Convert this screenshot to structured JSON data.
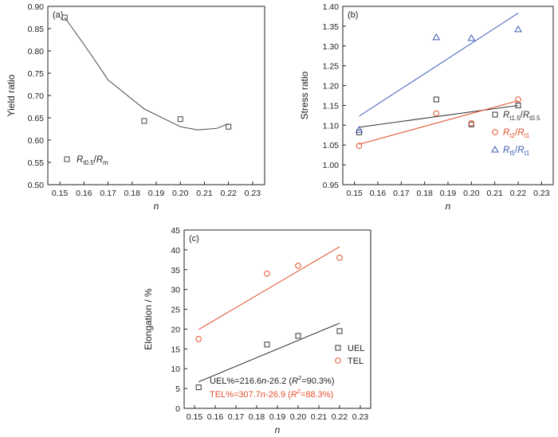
{
  "chart_data": [
    {
      "panel": "(a)",
      "type": "scatter",
      "xlabel": "n",
      "ylabel": "Yield ratio",
      "xlim": [
        0.145,
        0.235
      ],
      "ylim": [
        0.5,
        0.9
      ],
      "xticks": [
        "0.15",
        "0.16",
        "0.17",
        "0.18",
        "0.19",
        "0.20",
        "0.21",
        "0.22",
        "0.23"
      ],
      "yticks": [
        "0.50",
        "0.55",
        "0.60",
        "0.65",
        "0.70",
        "0.75",
        "0.80",
        "0.85",
        "0.90"
      ],
      "series": [
        {
          "name": "Rt0.5/Rm",
          "marker": "square",
          "color": "#444444",
          "x": [
            0.152,
            0.185,
            0.2,
            0.22
          ],
          "y": [
            0.875,
            0.643,
            0.647,
            0.63
          ]
        }
      ],
      "fit_curve": {
        "type": "quadratic",
        "color": "#444444",
        "x": [
          0.152,
          0.17,
          0.185,
          0.2,
          0.207,
          0.215,
          0.22
        ],
        "y": [
          0.875,
          0.735,
          0.67,
          0.63,
          0.623,
          0.626,
          0.637
        ]
      },
      "legend": {
        "position": "bottom-left",
        "label_main": "R",
        "label_sub1": "t0.5",
        "label_sep": "/",
        "label_main2": "R",
        "label_sub2": "m"
      }
    },
    {
      "panel": "(b)",
      "type": "scatter",
      "xlabel": "n",
      "ylabel": "Stress ratio",
      "xlim": [
        0.145,
        0.235
      ],
      "ylim": [
        0.95,
        1.4
      ],
      "xticks": [
        "0.15",
        "0.16",
        "0.17",
        "0.18",
        "0.19",
        "0.20",
        "0.21",
        "0.22",
        "0.23"
      ],
      "yticks": [
        "0.95",
        "1.00",
        "1.05",
        "1.10",
        "1.15",
        "1.20",
        "1.25",
        "1.30",
        "1.35",
        "1.40"
      ],
      "series": [
        {
          "name": "Rt1.5/Rt0.5",
          "marker": "square",
          "color": "#333333",
          "x": [
            0.152,
            0.185,
            0.2,
            0.22
          ],
          "y": [
            1.082,
            1.165,
            1.102,
            1.15
          ],
          "fit": {
            "x": [
              0.152,
              0.22
            ],
            "y": [
              1.095,
              1.15
            ]
          }
        },
        {
          "name": "Rt2/Rt1",
          "marker": "circle",
          "color": "#e2502b",
          "x": [
            0.152,
            0.185,
            0.2,
            0.22
          ],
          "y": [
            1.048,
            1.13,
            1.105,
            1.165
          ],
          "fit": {
            "x": [
              0.152,
              0.22
            ],
            "y": [
              1.052,
              1.162
            ]
          }
        },
        {
          "name": "Rt5/Rt1",
          "marker": "triangle",
          "color": "#3b5cb5",
          "x": [
            0.152,
            0.185,
            0.2,
            0.22
          ],
          "y": [
            1.088,
            1.322,
            1.32,
            1.342
          ],
          "fit": {
            "x": [
              0.152,
              0.22
            ],
            "y": [
              1.123,
              1.383
            ]
          }
        }
      ],
      "legend": {
        "position": "bottom-right",
        "entries": [
          {
            "main": "R",
            "sub1": "t1.5",
            "sep": "/",
            "main2": "R",
            "sub2": "t0.5"
          },
          {
            "main": "R",
            "sub1": "t2",
            "sep": "/",
            "main2": "R",
            "sub2": "t1"
          },
          {
            "main": "R",
            "sub1": "t5",
            "sep": "/",
            "main2": "R",
            "sub2": "t1"
          }
        ]
      }
    },
    {
      "panel": "(c)",
      "type": "scatter",
      "xlabel": "n",
      "ylabel": "Elongation / %",
      "xlim": [
        0.145,
        0.235
      ],
      "ylim": [
        0,
        45
      ],
      "xticks": [
        "0.15",
        "0.16",
        "0.17",
        "0.18",
        "0.19",
        "0.20",
        "0.21",
        "0.22",
        "0.23"
      ],
      "yticks": [
        "0",
        "5",
        "10",
        "15",
        "20",
        "25",
        "30",
        "35",
        "40",
        "45"
      ],
      "series": [
        {
          "name": "UEL",
          "marker": "square",
          "color": "#333333",
          "x": [
            0.152,
            0.185,
            0.2,
            0.22
          ],
          "y": [
            5.3,
            16.1,
            18.3,
            19.5
          ],
          "fit": {
            "x": [
              0.152,
              0.22
            ],
            "y": [
              6.7,
              21.5
            ]
          }
        },
        {
          "name": "TEL",
          "marker": "circle",
          "color": "#e2502b",
          "x": [
            0.152,
            0.185,
            0.2,
            0.22
          ],
          "y": [
            17.5,
            34.0,
            36.0,
            38.0
          ],
          "fit": {
            "x": [
              0.152,
              0.22
            ],
            "y": [
              19.9,
              40.8
            ]
          }
        }
      ],
      "legend": {
        "position": "bottom-right",
        "entries": [
          "UEL",
          "TEL"
        ]
      },
      "annotations": [
        {
          "color": "#222222",
          "eq_pre": "UEL%=216.6",
          "eq_n": "n",
          "eq_post": "-26.2",
          "r_open": "(",
          "r_sym": "R",
          "r_sup": "2",
          "r_val": "=90.3%)"
        },
        {
          "color": "#e2502b",
          "eq_pre": "TEL%=307.7",
          "eq_n": "n",
          "eq_post": "-26.9",
          "r_open": "(",
          "r_sym": "R",
          "r_sup": "2",
          "r_val": "=88.3%)"
        }
      ]
    }
  ]
}
